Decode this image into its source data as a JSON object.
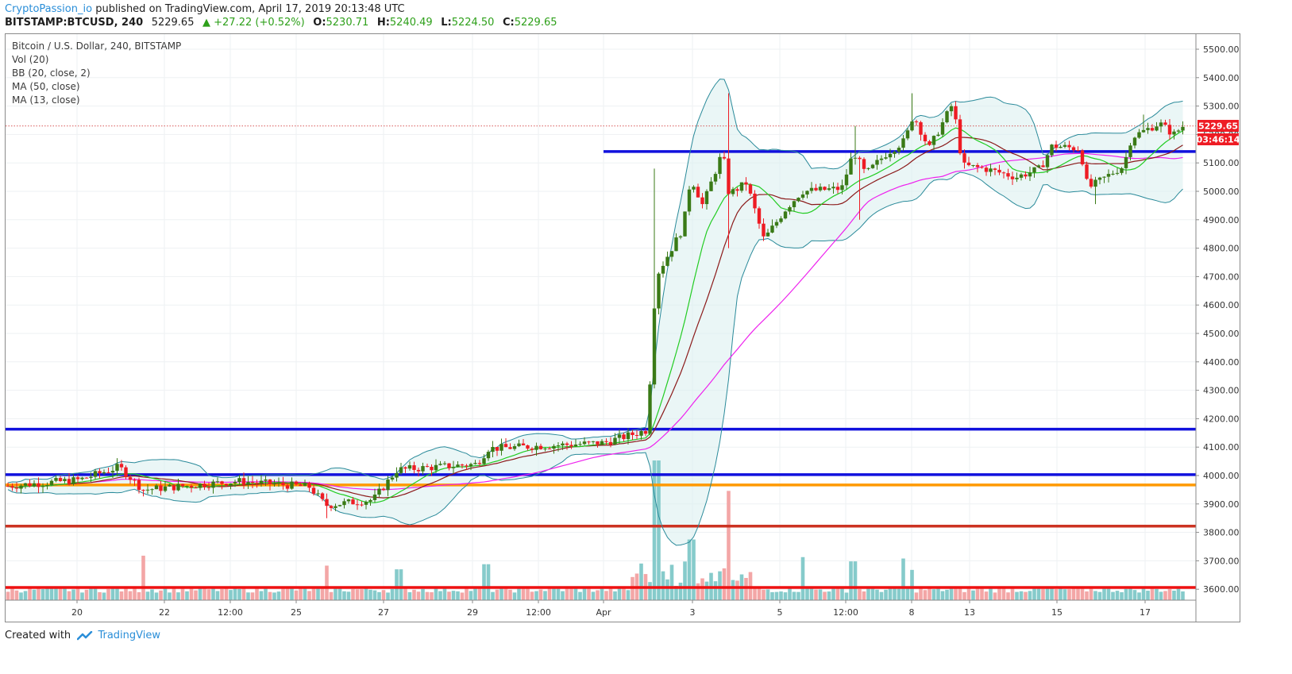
{
  "header": {
    "author": "CryptoPassion_io",
    "published": "published on TradingView.com, April 17, 2019 20:13:48 UTC",
    "symbol": "BITSTAMP:BTCUSD, 240",
    "last": "5229.65",
    "change": "▲ +27.22 (+0.52%)",
    "o_label": "O:",
    "o_value": "5230.71",
    "h_label": "H:",
    "h_value": "5240.49",
    "l_label": "L:",
    "l_value": "5224.50",
    "c_label": "C:",
    "c_value": "5229.65"
  },
  "legend": {
    "title": "Bitcoin / U.S. Dollar, 240, BITSTAMP",
    "vol": "Vol (20)",
    "bb": "BB (20, close, 2)",
    "ma50": "MA (50, close)",
    "ma13": "MA (13, close)"
  },
  "price_tag": "5229.65",
  "countdown_tag": "03:46:14",
  "footer": {
    "created_with": "Created with",
    "brand": "TradingView"
  },
  "colors": {
    "up": "#3a7a16",
    "down": "#ee1c24",
    "bb": "#2a8a9a",
    "bb_fill": "#d8eeee",
    "ma13": "#22cc22",
    "ma50": "#8b1a1a",
    "ma_long": "#ee22ee",
    "vol_up": "#86cbcb",
    "vol_down": "#f3a6a6",
    "level_blue": "#1111dd",
    "level_orange": "#ff9900",
    "level_brown": "#cc3322",
    "level_red": "#ee1111"
  },
  "chart_data": {
    "type": "candlestick",
    "y_ticks": [
      "5500.00",
      "5400.00",
      "5300.00",
      "5200.00",
      "5100.00",
      "5000.00",
      "4900.00",
      "4800.00",
      "4700.00",
      "4600.00",
      "4500.00",
      "4400.00",
      "4300.00",
      "4200.00",
      "4100.00",
      "4000.00",
      "3900.00",
      "3800.00",
      "3700.00",
      "3600.00"
    ],
    "ylim": [
      3563,
      5568
    ],
    "x_ticks": [
      {
        "label": "20",
        "x": 97
      },
      {
        "label": "22",
        "x": 207
      },
      {
        "label": "12:00",
        "x": 290
      },
      {
        "label": "25",
        "x": 373
      },
      {
        "label": "27",
        "x": 483
      },
      {
        "label": "29",
        "x": 595
      },
      {
        "label": "12:00",
        "x": 678
      },
      {
        "label": "Apr",
        "x": 760
      },
      {
        "label": "3",
        "x": 872
      },
      {
        "label": "5",
        "x": 982
      },
      {
        "label": "12:00",
        "x": 1065
      },
      {
        "label": "8",
        "x": 1148
      },
      {
        "label": "13",
        "x": 1221
      },
      {
        "label": "15",
        "x": 1331
      },
      {
        "label": "17",
        "x": 1442
      }
    ],
    "levels": [
      {
        "price": 5140,
        "from": "Apr 1",
        "color": "level_blue"
      },
      {
        "price": 4163,
        "color": "level_blue"
      },
      {
        "price": 4003,
        "color": "level_blue"
      },
      {
        "price": 3967,
        "color": "level_orange"
      },
      {
        "price": 3822,
        "color": "level_brown"
      },
      {
        "price": 3606,
        "color": "level_red"
      }
    ],
    "current_price": 5229.65,
    "candles_ohlc_keyframes": [
      {
        "x": 10,
        "c": 3963
      },
      {
        "x": 100,
        "c": 3985
      },
      {
        "x": 150,
        "c": 4030
      },
      {
        "x": 180,
        "c": 3950
      },
      {
        "x": 300,
        "c": 3980
      },
      {
        "x": 390,
        "c": 3960
      },
      {
        "x": 410,
        "c": 3895
      },
      {
        "x": 470,
        "c": 3915
      },
      {
        "x": 500,
        "c": 4020
      },
      {
        "x": 600,
        "c": 4040
      },
      {
        "x": 615,
        "c": 4095
      },
      {
        "x": 760,
        "c": 4115
      },
      {
        "x": 815,
        "c": 4160
      },
      {
        "x": 826,
        "c": 4700
      },
      {
        "x": 838,
        "c": 4760
      },
      {
        "x": 860,
        "c": 4870
      },
      {
        "x": 870,
        "c": 5050
      },
      {
        "x": 885,
        "c": 4950
      },
      {
        "x": 910,
        "c": 5140
      },
      {
        "x": 918,
        "c": 4990
      },
      {
        "x": 940,
        "c": 5030
      },
      {
        "x": 962,
        "c": 4830
      },
      {
        "x": 990,
        "c": 4940
      },
      {
        "x": 1010,
        "c": 5000
      },
      {
        "x": 1060,
        "c": 5010
      },
      {
        "x": 1075,
        "c": 5140
      },
      {
        "x": 1090,
        "c": 5060
      },
      {
        "x": 1115,
        "c": 5130
      },
      {
        "x": 1140,
        "c": 5180
      },
      {
        "x": 1150,
        "c": 5270
      },
      {
        "x": 1170,
        "c": 5150
      },
      {
        "x": 1200,
        "c": 5310
      },
      {
        "x": 1212,
        "c": 5090
      },
      {
        "x": 1240,
        "c": 5080
      },
      {
        "x": 1280,
        "c": 5050
      },
      {
        "x": 1310,
        "c": 5080
      },
      {
        "x": 1325,
        "c": 5160
      },
      {
        "x": 1360,
        "c": 5150
      },
      {
        "x": 1370,
        "c": 5010
      },
      {
        "x": 1415,
        "c": 5090
      },
      {
        "x": 1425,
        "c": 5190
      },
      {
        "x": 1460,
        "c": 5240
      },
      {
        "x": 1478,
        "c": 5200
      },
      {
        "x": 1490,
        "c": 5230
      }
    ],
    "volume_spikes": [
      {
        "x": 180,
        "h": 3718
      },
      {
        "x": 410,
        "h": 3683
      },
      {
        "x": 502,
        "h": 3670
      },
      {
        "x": 612,
        "h": 3688
      },
      {
        "x": 826,
        "h": 4053
      },
      {
        "x": 870,
        "h": 3775
      },
      {
        "x": 918,
        "h": 3946
      },
      {
        "x": 1010,
        "h": 3713
      },
      {
        "x": 1075,
        "h": 3698
      },
      {
        "x": 1138,
        "h": 3708
      },
      {
        "x": 1150,
        "h": 3668
      }
    ]
  }
}
